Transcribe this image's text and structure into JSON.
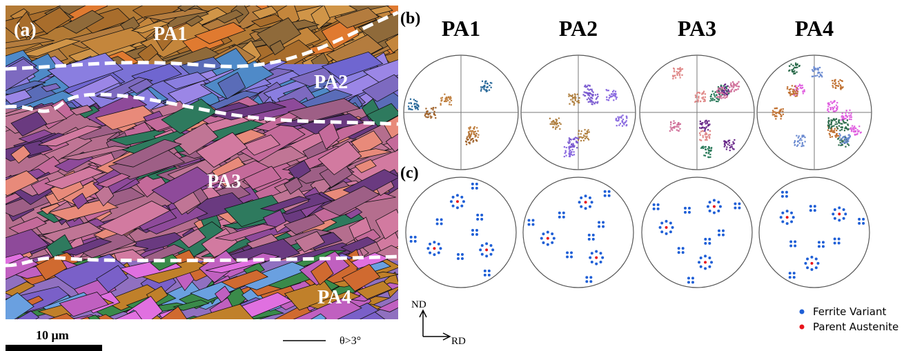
{
  "panel_a": {
    "label": "(a)",
    "regions": [
      "PA1",
      "PA2",
      "PA3",
      "PA4"
    ],
    "scale_bar": "10 μm",
    "boundary_legend": "θ>3°"
  },
  "panel_b": {
    "label": "(b)",
    "columns": [
      "PA1",
      "PA2",
      "PA3",
      "PA4"
    ]
  },
  "panel_c": {
    "label": "(c)"
  },
  "axes": {
    "vertical": "ND",
    "horizontal": "RD"
  },
  "legend": [
    {
      "label": "Ferrite Variant",
      "color": "#1f5fd6"
    },
    {
      "label": "Parent Austenite",
      "color": "#e8141b"
    }
  ]
}
